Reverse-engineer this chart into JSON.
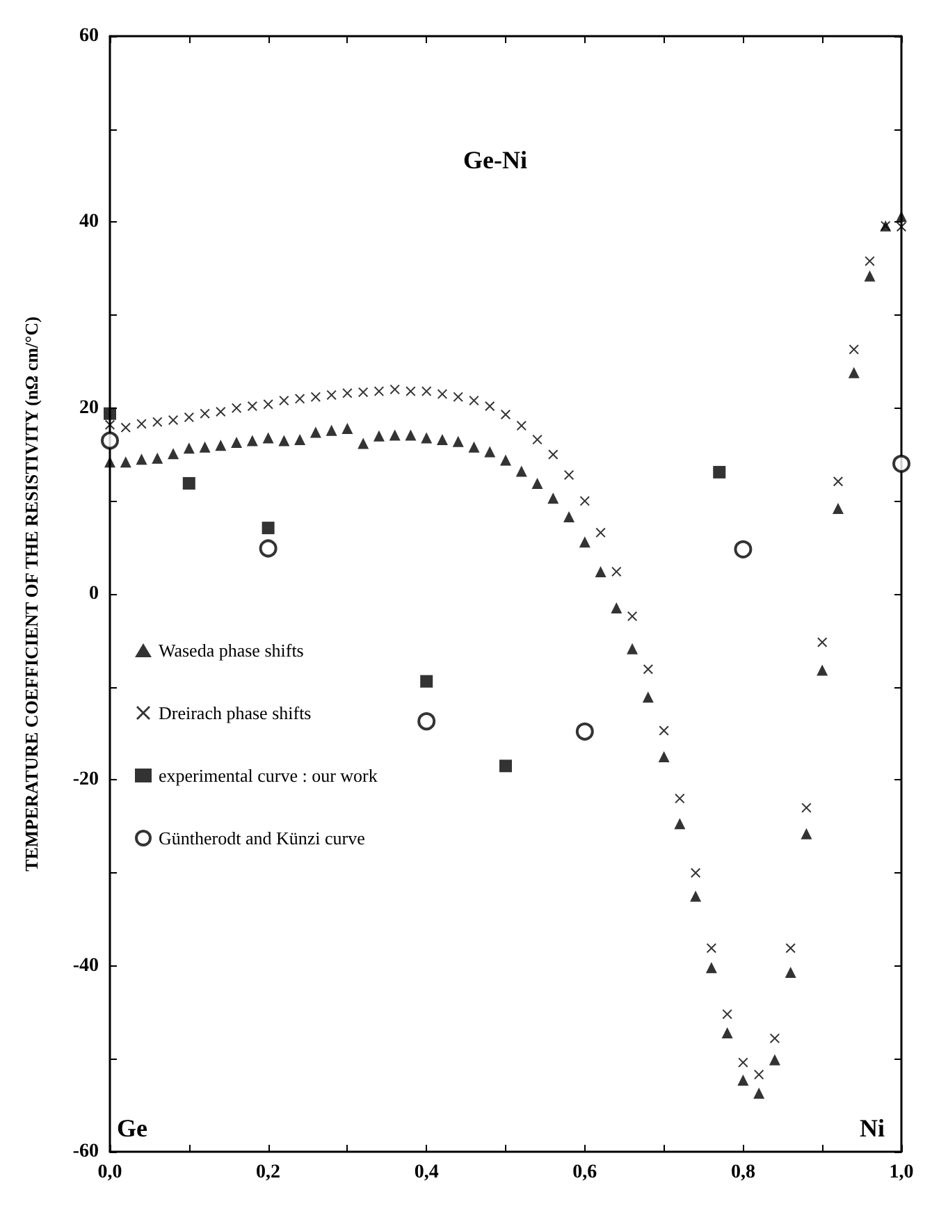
{
  "chart_data": {
    "type": "scatter",
    "title": "Ge-Ni",
    "ylabel": "TEMPERATURE COEFFICIENT OF THE RESISTIVITY (nΩ cm/°C)",
    "annotations": [
      "Ge",
      "Ni"
    ],
    "xlim": [
      0,
      1
    ],
    "ylim": [
      -60,
      60
    ],
    "xticks": [
      {
        "value": 0,
        "label": "0,0"
      },
      {
        "value": 0.1,
        "label": null
      },
      {
        "value": 0.2,
        "label": "0,2"
      },
      {
        "value": 0.3,
        "label": null
      },
      {
        "value": 0.4,
        "label": "0,4"
      },
      {
        "value": 0.5,
        "label": null
      },
      {
        "value": 0.6,
        "label": "0,6"
      },
      {
        "value": 0.7,
        "label": null
      },
      {
        "value": 0.8,
        "label": "0,8"
      },
      {
        "value": 0.9,
        "label": null
      },
      {
        "value": 1,
        "label": "1,0"
      }
    ],
    "yticks": [
      -60,
      {
        "value": -50,
        "label": null
      },
      -40,
      {
        "value": -30,
        "label": null
      },
      -20,
      {
        "value": -10,
        "label": null
      },
      0,
      {
        "value": 10,
        "label": null
      },
      20,
      {
        "value": 30,
        "label": null
      },
      40,
      {
        "value": 50,
        "label": null
      },
      60
    ],
    "grid": false,
    "legend": "bottom left",
    "series": [
      {
        "name": "Waseda phase shifts",
        "color": "#000000",
        "marker": "triangle",
        "x": [
          0,
          0.02,
          0.04,
          0.06,
          0.08,
          0.1,
          0.12,
          0.14,
          0.16,
          0.18,
          0.2,
          0.22,
          0.24,
          0.26,
          0.28,
          0.3,
          0.32,
          0.34,
          0.36,
          0.38,
          0.4,
          0.42,
          0.44,
          0.46,
          0.48,
          0.5,
          0.52,
          0.54,
          0.56,
          0.58,
          0.6,
          0.62,
          0.64,
          0.66,
          0.68,
          0.7,
          0.72,
          0.74,
          0.76,
          0.78,
          0.8,
          0.82,
          0.84,
          0.86,
          0.88,
          0.9,
          0.92,
          0.94,
          0.96,
          0.98,
          1
        ],
        "values": [
          14.2,
          14.2,
          14.5,
          14.6,
          15.1,
          15.7,
          15.8,
          16.0,
          16.3,
          16.5,
          16.8,
          16.5,
          16.6,
          17.4,
          17.6,
          17.8,
          16.2,
          17.0,
          17.1,
          17.1,
          16.8,
          16.6,
          16.4,
          15.8,
          15.3,
          14.4,
          13.2,
          11.9,
          10.3,
          8.3,
          5.6,
          2.4,
          -1.5,
          -5.9,
          -11.1,
          -17.5,
          -24.7,
          -32.5,
          -40.2,
          -47.2,
          -52.3,
          -53.7,
          -50.1,
          -40.7,
          -25.8,
          -8.2,
          9.2,
          23.8,
          34.2,
          39.6,
          40.6
        ]
      },
      {
        "name": "Dreirach phase shifts",
        "color": "#000000",
        "marker": "cross",
        "x": [
          0,
          0.02,
          0.04,
          0.06,
          0.08,
          0.1,
          0.12,
          0.14,
          0.16,
          0.18,
          0.2,
          0.22,
          0.24,
          0.26,
          0.28,
          0.3,
          0.32,
          0.34,
          0.36,
          0.38,
          0.4,
          0.42,
          0.44,
          0.46,
          0.48,
          0.5,
          0.52,
          0.54,
          0.56,
          0.58,
          0.6,
          0.62,
          0.64,
          0.66,
          0.68,
          0.7,
          0.72,
          0.74,
          0.76,
          0.78,
          0.8,
          0.82,
          0.84,
          0.86,
          0.88,
          0.9,
          0.92,
          0.94,
          0.96,
          0.98,
          1
        ],
        "values": [
          18.2,
          17.9,
          18.3,
          18.5,
          18.7,
          19.0,
          19.4,
          19.6,
          20.0,
          20.2,
          20.4,
          20.8,
          21.0,
          21.2,
          21.4,
          21.6,
          21.7,
          21.8,
          22.0,
          21.8,
          21.8,
          21.5,
          21.2,
          20.8,
          20.2,
          19.3,
          18.1,
          16.6,
          15.0,
          12.8,
          10.0,
          6.6,
          2.4,
          -2.4,
          -8.1,
          -14.7,
          -22.0,
          -30.0,
          -38.1,
          -45.2,
          -50.4,
          -51.7,
          -47.8,
          -38.1,
          -23.0,
          -5.2,
          12.1,
          26.3,
          35.8,
          39.6,
          39.5
        ]
      },
      {
        "name": "experimental curve : our work",
        "color": "#000000",
        "marker": "square",
        "x": [
          0,
          0.1,
          0.2,
          0.4,
          0.5,
          0.77
        ],
        "values": [
          19.4,
          11.9,
          7.1,
          -9.4,
          -18.5,
          13.1
        ]
      },
      {
        "name": "Güntherodt and Künzi curve",
        "color": "#000000",
        "marker": "circle",
        "x": [
          0,
          0.2,
          0.4,
          0.6,
          0.8,
          1
        ],
        "values": [
          16.5,
          4.9,
          -13.7,
          -14.8,
          4.8,
          14.0
        ]
      }
    ]
  }
}
